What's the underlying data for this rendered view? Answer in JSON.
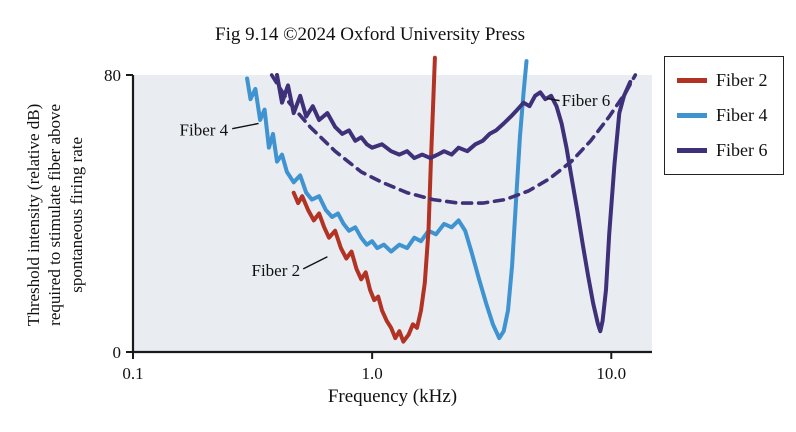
{
  "chart_data": {
    "type": "line",
    "title": "Fig 9.14 ©2024 Oxford University Press",
    "xlabel": "Frequency (kHz)",
    "ylabel": "Threshold intensity (relative dB) required to stimulate fiber above spontaneous firing rate",
    "ylabel_lines": [
      "Threshold intensity (relative dB)",
      "required to stimulate fiber above",
      "spontaneous firing rate"
    ],
    "x_scale": "log",
    "xlim": [
      0.1,
      14.8
    ],
    "ylim": [
      0,
      80
    ],
    "grid": false,
    "plot_bg": "#e9ecf1",
    "axis_color": "#1a1a1a",
    "legend_position": "outside-top-right",
    "x_ticks": [
      {
        "value": 0.1,
        "label": "0.1"
      },
      {
        "value": 1.0,
        "label": "1.0"
      },
      {
        "value": 10.0,
        "label": "10.0"
      }
    ],
    "y_ticks": [
      {
        "value": 0,
        "label": "0"
      },
      {
        "value": 80,
        "label": "80"
      }
    ],
    "series": [
      {
        "name": "Fiber 4",
        "color": "#3e93d0",
        "width": 4,
        "dashed": false,
        "points": [
          [
            0.3,
            79
          ],
          [
            0.31,
            73
          ],
          [
            0.325,
            76
          ],
          [
            0.34,
            67
          ],
          [
            0.355,
            70
          ],
          [
            0.37,
            59
          ],
          [
            0.385,
            63
          ],
          [
            0.4,
            55
          ],
          [
            0.42,
            57
          ],
          [
            0.44,
            52
          ],
          [
            0.47,
            49
          ],
          [
            0.5,
            51
          ],
          [
            0.53,
            46
          ],
          [
            0.56,
            44
          ],
          [
            0.6,
            45
          ],
          [
            0.64,
            41
          ],
          [
            0.68,
            39
          ],
          [
            0.72,
            40
          ],
          [
            0.76,
            37
          ],
          [
            0.8,
            35
          ],
          [
            0.85,
            36
          ],
          [
            0.9,
            33
          ],
          [
            0.95,
            31
          ],
          [
            1.0,
            32
          ],
          [
            1.05,
            30
          ],
          [
            1.12,
            31
          ],
          [
            1.2,
            29
          ],
          [
            1.3,
            31
          ],
          [
            1.4,
            30
          ],
          [
            1.5,
            33
          ],
          [
            1.6,
            32
          ],
          [
            1.72,
            35
          ],
          [
            1.85,
            34
          ],
          [
            2.0,
            37
          ],
          [
            2.15,
            36
          ],
          [
            2.3,
            38
          ],
          [
            2.45,
            35
          ],
          [
            2.6,
            29
          ],
          [
            2.8,
            21
          ],
          [
            3.0,
            14
          ],
          [
            3.2,
            8
          ],
          [
            3.4,
            4
          ],
          [
            3.55,
            6
          ],
          [
            3.7,
            12
          ],
          [
            3.85,
            25
          ],
          [
            4.0,
            44
          ],
          [
            4.15,
            62
          ],
          [
            4.3,
            75
          ],
          [
            4.42,
            84
          ]
        ]
      },
      {
        "name": "Fiber 2",
        "color": "#b23224",
        "width": 4,
        "dashed": false,
        "points": [
          [
            0.47,
            46
          ],
          [
            0.49,
            43
          ],
          [
            0.51,
            45
          ],
          [
            0.54,
            41
          ],
          [
            0.57,
            38
          ],
          [
            0.6,
            40
          ],
          [
            0.63,
            36
          ],
          [
            0.66,
            33
          ],
          [
            0.7,
            35
          ],
          [
            0.74,
            30
          ],
          [
            0.78,
            27
          ],
          [
            0.82,
            29
          ],
          [
            0.86,
            24
          ],
          [
            0.9,
            21
          ],
          [
            0.94,
            23
          ],
          [
            0.98,
            18
          ],
          [
            1.02,
            15
          ],
          [
            1.06,
            16
          ],
          [
            1.1,
            12
          ],
          [
            1.15,
            9
          ],
          [
            1.2,
            7
          ],
          [
            1.25,
            4
          ],
          [
            1.3,
            6
          ],
          [
            1.35,
            3
          ],
          [
            1.42,
            5
          ],
          [
            1.48,
            8
          ],
          [
            1.54,
            7
          ],
          [
            1.6,
            12
          ],
          [
            1.66,
            20
          ],
          [
            1.72,
            35
          ],
          [
            1.76,
            55
          ],
          [
            1.8,
            72
          ],
          [
            1.83,
            85
          ]
        ]
      },
      {
        "name": "Fiber 6 fit dashed",
        "color": "#3e3179",
        "width": 3.6,
        "dashed": true,
        "points": [
          [
            0.38,
            80
          ],
          [
            0.45,
            72
          ],
          [
            0.55,
            65
          ],
          [
            0.7,
            58
          ],
          [
            0.9,
            52
          ],
          [
            1.1,
            49
          ],
          [
            1.4,
            46
          ],
          [
            1.8,
            44
          ],
          [
            2.3,
            43
          ],
          [
            2.9,
            43
          ],
          [
            3.6,
            44
          ],
          [
            4.5,
            46.5
          ],
          [
            5.5,
            50
          ],
          [
            6.8,
            55
          ],
          [
            8.2,
            61
          ],
          [
            9.8,
            68
          ],
          [
            11.5,
            75
          ],
          [
            12.6,
            80
          ]
        ]
      },
      {
        "name": "Fiber 6",
        "color": "#3e3179",
        "width": 4,
        "dashed": false,
        "points": [
          [
            0.4,
            80
          ],
          [
            0.42,
            72
          ],
          [
            0.445,
            77
          ],
          [
            0.47,
            69
          ],
          [
            0.5,
            74
          ],
          [
            0.53,
            68
          ],
          [
            0.565,
            71
          ],
          [
            0.6,
            67
          ],
          [
            0.65,
            69
          ],
          [
            0.7,
            65
          ],
          [
            0.75,
            63
          ],
          [
            0.8,
            64
          ],
          [
            0.85,
            61
          ],
          [
            0.9,
            62
          ],
          [
            0.95,
            60
          ],
          [
            1.0,
            59
          ],
          [
            1.1,
            60
          ],
          [
            1.2,
            58
          ],
          [
            1.3,
            57
          ],
          [
            1.4,
            58
          ],
          [
            1.5,
            56
          ],
          [
            1.62,
            57
          ],
          [
            1.75,
            56
          ],
          [
            1.88,
            57
          ],
          [
            2.0,
            58
          ],
          [
            2.15,
            57
          ],
          [
            2.3,
            59
          ],
          [
            2.5,
            58
          ],
          [
            2.7,
            60
          ],
          [
            2.9,
            61
          ],
          [
            3.1,
            63
          ],
          [
            3.3,
            64
          ],
          [
            3.55,
            66
          ],
          [
            3.8,
            68
          ],
          [
            4.05,
            70
          ],
          [
            4.3,
            72
          ],
          [
            4.55,
            71
          ],
          [
            4.8,
            74
          ],
          [
            5.05,
            75
          ],
          [
            5.3,
            73
          ],
          [
            5.6,
            74
          ],
          [
            5.9,
            71
          ],
          [
            6.2,
            66
          ],
          [
            6.5,
            59
          ],
          [
            6.8,
            51
          ],
          [
            7.2,
            41
          ],
          [
            7.6,
            31
          ],
          [
            8.0,
            22
          ],
          [
            8.4,
            14
          ],
          [
            8.8,
            8
          ],
          [
            9.0,
            6
          ],
          [
            9.2,
            9
          ],
          [
            9.5,
            18
          ],
          [
            9.8,
            34
          ],
          [
            10.3,
            54
          ],
          [
            10.8,
            69
          ],
          [
            11.3,
            74
          ],
          [
            12.0,
            78
          ]
        ]
      }
    ],
    "annotations": [
      {
        "text": "Fiber 4",
        "x": 0.25,
        "y": 62.5,
        "anchor": "end",
        "leader": [
          0.26,
          64.5,
          0.335,
          66
        ]
      },
      {
        "text": "Fiber 2",
        "x": 0.5,
        "y": 22,
        "anchor": "end",
        "leader": [
          0.515,
          24,
          0.65,
          27.5
        ]
      },
      {
        "text": "Fiber 6",
        "x": 6.2,
        "y": 71,
        "anchor": "start",
        "leader": [
          6.08,
          72.6,
          5.38,
          73.2
        ]
      }
    ],
    "legend": {
      "items": [
        {
          "label": "Fiber 2",
          "color": "#b23224"
        },
        {
          "label": "Fiber 4",
          "color": "#3e93d0"
        },
        {
          "label": "Fiber 6",
          "color": "#3e3179"
        }
      ]
    }
  }
}
